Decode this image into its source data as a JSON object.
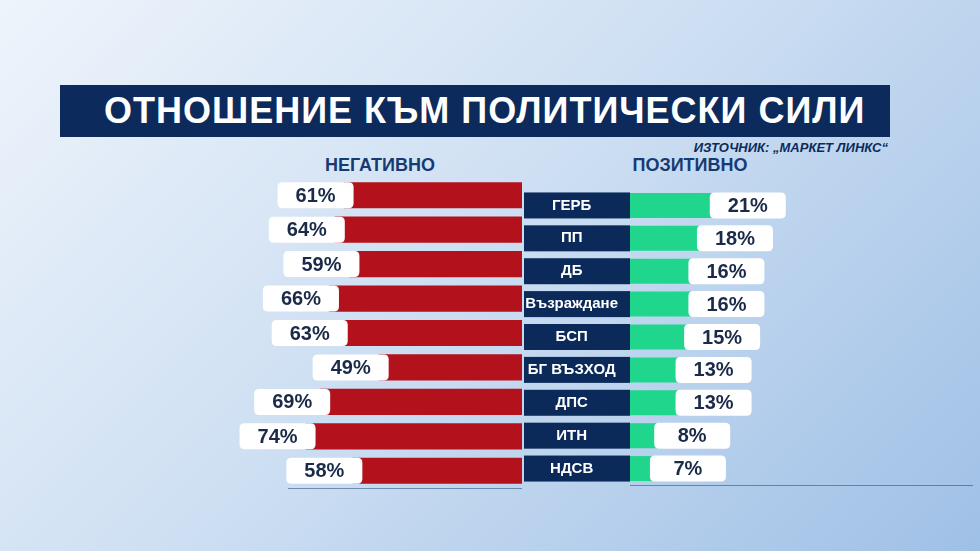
{
  "chart_data": {
    "type": "bar",
    "title": "ОТНОШЕНИЕ КЪМ ПОЛИТИЧЕСКИ СИЛИ",
    "subtitle": "ИЗТОЧНИК: „МАРКЕТ ЛИНКС“",
    "orientation": "horizontal",
    "categories": [
      "ГЕРБ",
      "ПП",
      "ДБ",
      "Възраждане",
      "БСП",
      "БГ ВЪЗХОД",
      "ДПС",
      "ИТН",
      "НДСВ"
    ],
    "series": [
      {
        "name": "НЕГАТИВНО",
        "color": "#b3121c",
        "values": [
          61,
          64,
          59,
          66,
          63,
          49,
          69,
          74,
          58
        ],
        "value_labels": [
          "61%",
          "64%",
          "59%",
          "66%",
          "63%",
          "49%",
          "69%",
          "74%",
          "58%"
        ]
      },
      {
        "name": "ПОЗИТИВНО",
        "color": "#20d58c",
        "values": [
          21,
          18,
          16,
          16,
          15,
          13,
          13,
          8,
          7
        ],
        "value_labels": [
          "21%",
          "18%",
          "16%",
          "16%",
          "15%",
          "13%",
          "13%",
          "8%",
          "7%"
        ]
      }
    ],
    "xlim": [
      0,
      80
    ],
    "tick_labels": "y",
    "data_labels": true,
    "grid": false
  }
}
